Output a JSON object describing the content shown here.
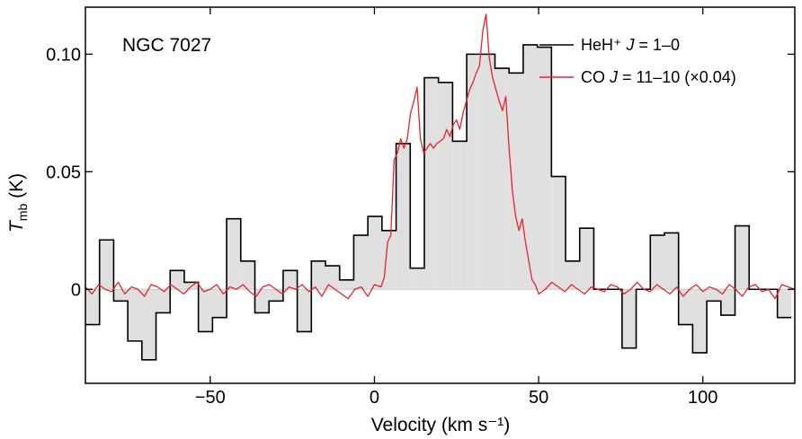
{
  "chart_data": {
    "type": "line",
    "title": "NGC 7027",
    "xlabel": "Velocity (km s⁻¹)",
    "ylabel": {
      "symbol": "T",
      "subscript": "mb",
      "unit": " (K)"
    },
    "xlim": [
      -88,
      128
    ],
    "ylim": [
      -0.04,
      0.12
    ],
    "xticks": [
      -50,
      0,
      50,
      100
    ],
    "xtick_labels": [
      "−50",
      "0",
      "50",
      "100"
    ],
    "yticks": [
      0,
      0.05,
      0.1
    ],
    "ytick_labels": [
      "0",
      "0.05",
      "0.10"
    ],
    "series": [
      {
        "name": "HeH⁺ J = 1–0",
        "legend": {
          "pre": "HeH⁺ ",
          "ital": "J",
          "post": " = 1–0"
        },
        "style": "step",
        "color": "#000000",
        "fill": "#e0e0e0",
        "bin_width": 4.3,
        "x": [
          -88.0,
          -83.7,
          -79.4,
          -75.1,
          -70.8,
          -66.5,
          -62.2,
          -57.9,
          -53.6,
          -49.3,
          -45.0,
          -40.7,
          -36.4,
          -32.1,
          -27.8,
          -23.5,
          -19.2,
          -14.9,
          -10.6,
          -6.3,
          -2.0,
          2.3,
          6.6,
          10.9,
          15.2,
          19.5,
          23.8,
          28.1,
          32.4,
          36.7,
          41.0,
          45.3,
          49.6,
          53.9,
          58.2,
          62.5,
          66.8,
          71.1,
          75.4,
          79.7,
          84.0,
          88.3,
          92.6,
          96.9,
          101.2,
          105.5,
          109.8,
          114.1,
          118.4,
          122.7
        ],
        "values": [
          -0.015,
          0.021,
          -0.005,
          -0.022,
          -0.03,
          -0.01,
          0.008,
          0.003,
          -0.018,
          -0.012,
          0.03,
          0.012,
          -0.01,
          -0.005,
          0.008,
          -0.018,
          0.012,
          0.01,
          0.004,
          0.023,
          0.031,
          0.025,
          0.062,
          0.009,
          0.09,
          0.088,
          0.063,
          0.1,
          0.1,
          0.094,
          0.092,
          0.104,
          0.103,
          0.048,
          0.012,
          0.026,
          0.0,
          0.0,
          -0.025,
          0.0,
          0.023,
          0.024,
          -0.015,
          -0.027,
          -0.005,
          -0.011,
          0.027,
          0.0,
          0.0,
          -0.012
        ]
      },
      {
        "name": "CO J = 11–10 (×0.04)",
        "legend": {
          "pre": "CO ",
          "ital": "J",
          "post": " = 11–10 (×0.04)"
        },
        "style": "line",
        "color": "#e8222a",
        "x": [
          -88,
          -86,
          -84,
          -82,
          -80,
          -78,
          -76,
          -74,
          -72,
          -70,
          -68,
          -66,
          -64,
          -62,
          -60,
          -58,
          -56,
          -54,
          -52,
          -50,
          -48,
          -46,
          -44,
          -42,
          -40,
          -38,
          -36,
          -34,
          -32,
          -30,
          -28,
          -26,
          -24,
          -22,
          -20,
          -18,
          -16,
          -14,
          -12,
          -10,
          -8,
          -6,
          -4,
          -2,
          0,
          2,
          3,
          4,
          5,
          6,
          7,
          8,
          9,
          10,
          11,
          12,
          13,
          14,
          15,
          16,
          17,
          18,
          19,
          20,
          21,
          22,
          23,
          24,
          25,
          26,
          27,
          28,
          29,
          30,
          31,
          32,
          33,
          34,
          35,
          36,
          37,
          38,
          39,
          40,
          41,
          42,
          43,
          44,
          45,
          46,
          47,
          48,
          49,
          50,
          52,
          54,
          56,
          58,
          60,
          62,
          64,
          66,
          68,
          70,
          72,
          74,
          76,
          78,
          80,
          82,
          84,
          86,
          88,
          90,
          92,
          94,
          96,
          98,
          100,
          102,
          104,
          106,
          108,
          110,
          112,
          114,
          116,
          118,
          120,
          122,
          124,
          126,
          128
        ],
        "values": [
          0.001,
          -0.002,
          0.002,
          0.0,
          -0.001,
          0.003,
          -0.002,
          0.001,
          0.0,
          -0.003,
          0.002,
          0.001,
          -0.001,
          0.002,
          0.0,
          -0.002,
          0.001,
          0.003,
          -0.001,
          0.0,
          0.002,
          -0.002,
          0.001,
          0.0,
          0.002,
          -0.001,
          -0.003,
          0.001,
          0.002,
          0.0,
          -0.002,
          0.001,
          0.0,
          0.002,
          -0.001,
          0.001,
          -0.003,
          0.002,
          0.0,
          -0.002,
          -0.004,
          0.0,
          0.001,
          -0.003,
          0.002,
          0.001,
          0.005,
          0.02,
          0.023,
          0.055,
          0.058,
          0.064,
          0.06,
          0.064,
          0.075,
          0.08,
          0.086,
          0.064,
          0.058,
          0.06,
          0.062,
          0.06,
          0.062,
          0.063,
          0.064,
          0.068,
          0.065,
          0.07,
          0.072,
          0.068,
          0.075,
          0.08,
          0.085,
          0.088,
          0.092,
          0.095,
          0.11,
          0.117,
          0.098,
          0.09,
          0.085,
          0.08,
          0.076,
          0.082,
          0.06,
          0.042,
          0.031,
          0.025,
          0.03,
          0.02,
          0.012,
          0.004,
          0.002,
          -0.002,
          0.0,
          0.003,
          0.001,
          -0.001,
          0.002,
          0.0,
          -0.002,
          0.001,
          0.0,
          -0.001,
          0.002,
          0.001,
          -0.002,
          0.0,
          0.003,
          0.0,
          -0.001,
          0.002,
          0.0,
          -0.002,
          0.001,
          -0.003,
          0.0,
          0.002,
          -0.001,
          0.001,
          0.0,
          -0.002,
          0.002,
          0.0,
          -0.003,
          0.001,
          0.002,
          -0.001,
          0.0,
          -0.004,
          0.002,
          0.001,
          0.0
        ]
      }
    ]
  }
}
